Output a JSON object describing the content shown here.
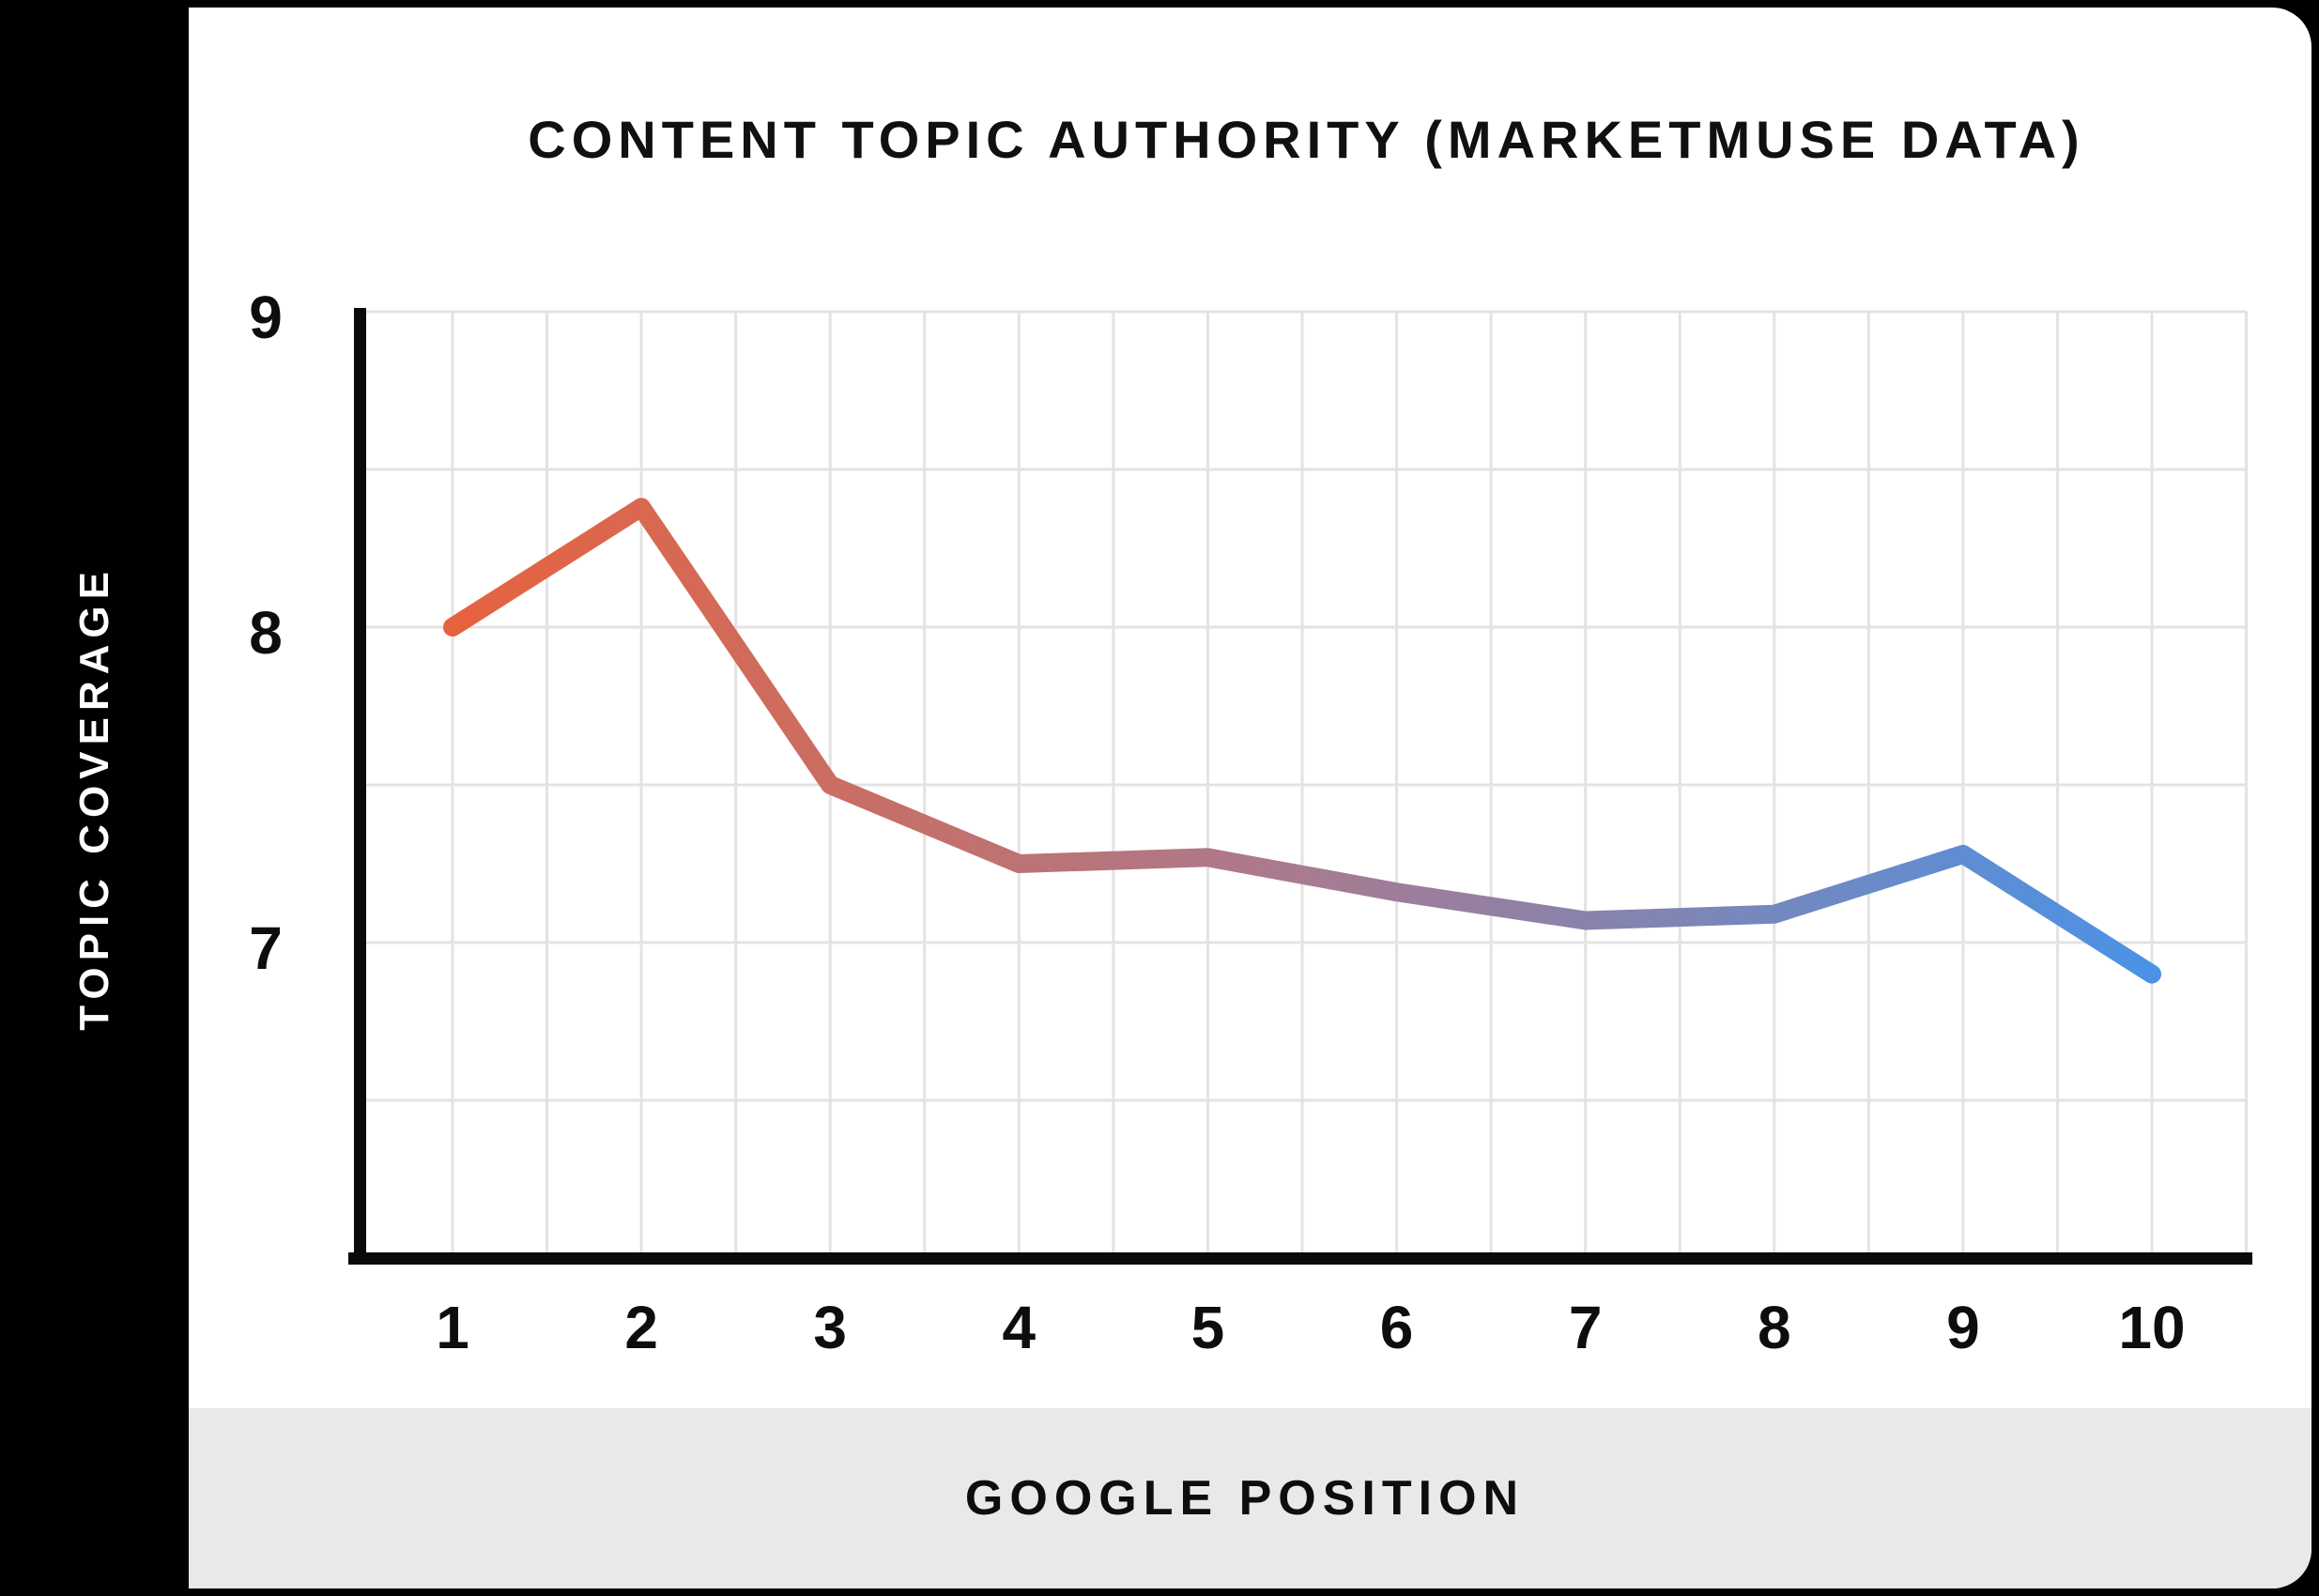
{
  "page": {
    "background": "#000000",
    "card_bg": "#FFFFFF",
    "footer_bg": "#E9E9E9",
    "sidebar_bg": "#000000",
    "grid_color": "#E3E3E3",
    "axis_color": "#0A0A0A",
    "text_color": "#101010"
  },
  "chart_data": {
    "type": "line",
    "title": "CONTENT TOPIC AUTHORITY (MARKETMUSE DATA)",
    "xlabel": "GOOGLE POSITION",
    "ylabel": "TOPIC COVERAGE",
    "x": [
      1,
      2,
      3,
      4,
      5,
      6,
      7,
      8,
      9,
      10
    ],
    "values": [
      8.0,
      8.38,
      7.5,
      7.25,
      7.27,
      7.16,
      7.07,
      7.09,
      7.28,
      6.9
    ],
    "x_tick_labels": [
      "1",
      "2",
      "3",
      "4",
      "5",
      "6",
      "7",
      "8",
      "9",
      "10"
    ],
    "y_ticks": [
      9,
      8,
      7
    ],
    "y_tick_labels": [
      "9",
      "8",
      "7"
    ],
    "ylim": [
      6,
      9
    ],
    "xlim": [
      0.5,
      10.5
    ],
    "grid": true,
    "grid_step_x": 0.5,
    "grid_step_y": 0.5,
    "legend_position": "none",
    "line_gradient": {
      "start": "#E7623E",
      "mid": "#A87B90",
      "end": "#4B92E5"
    }
  }
}
